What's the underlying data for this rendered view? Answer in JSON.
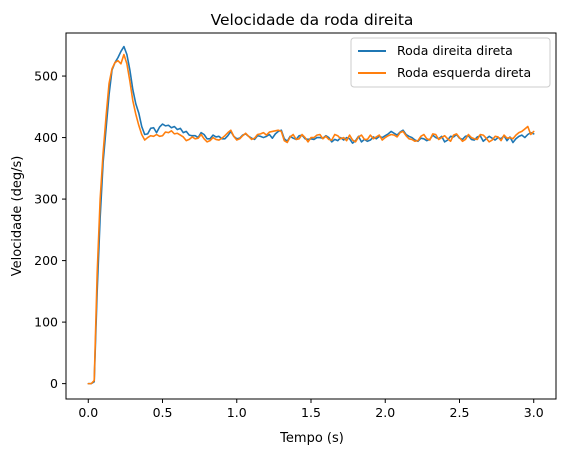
{
  "chart_data": {
    "type": "line",
    "title": "Velocidade da roda direita",
    "xlabel": "Tempo (s)",
    "ylabel": "Velocidade (deg/s)",
    "xlim": [
      -0.15,
      3.15
    ],
    "ylim": [
      -25,
      570
    ],
    "xticks": [
      0.0,
      0.5,
      1.0,
      1.5,
      2.0,
      2.5,
      3.0
    ],
    "xtick_labels": [
      "0.0",
      "0.5",
      "1.0",
      "1.5",
      "2.0",
      "2.5",
      "3.0"
    ],
    "yticks": [
      0,
      100,
      200,
      300,
      400,
      500
    ],
    "ytick_labels": [
      "0",
      "100",
      "200",
      "300",
      "400",
      "500"
    ],
    "grid": false,
    "legend_position": "top-right",
    "series": [
      {
        "name": "Roda direita direta",
        "color": "#1f77b4",
        "x": [
          0.0,
          0.02,
          0.04,
          0.06,
          0.08,
          0.1,
          0.12,
          0.14,
          0.16,
          0.18,
          0.2,
          0.22,
          0.24,
          0.26,
          0.28,
          0.3,
          0.32,
          0.34,
          0.36,
          0.38,
          0.4,
          0.42,
          0.44,
          0.46,
          0.48,
          0.5,
          0.52,
          0.54,
          0.56,
          0.58,
          0.6,
          0.62,
          0.64,
          0.66,
          0.68,
          0.7,
          0.72,
          0.74,
          0.76,
          0.78,
          0.8,
          0.82,
          0.84,
          0.86,
          0.88,
          0.9,
          0.92,
          0.94,
          0.96,
          0.98,
          1.0,
          1.02,
          1.04,
          1.06,
          1.08,
          1.1,
          1.12,
          1.14,
          1.16,
          1.18,
          1.2,
          1.22,
          1.24,
          1.26,
          1.28,
          1.3,
          1.32,
          1.34,
          1.36,
          1.38,
          1.4,
          1.42,
          1.44,
          1.46,
          1.48,
          1.5,
          1.52,
          1.54,
          1.56,
          1.58,
          1.6,
          1.62,
          1.64,
          1.66,
          1.68,
          1.7,
          1.72,
          1.74,
          1.76,
          1.78,
          1.8,
          1.82,
          1.84,
          1.86,
          1.88,
          1.9,
          1.92,
          1.94,
          1.96,
          1.98,
          2.0,
          2.02,
          2.04,
          2.06,
          2.08,
          2.1,
          2.12,
          2.14,
          2.16,
          2.18,
          2.2,
          2.22,
          2.24,
          2.26,
          2.28,
          2.3,
          2.32,
          2.34,
          2.36,
          2.38,
          2.4,
          2.42,
          2.44,
          2.46,
          2.48,
          2.5,
          2.52,
          2.54,
          2.56,
          2.58,
          2.6,
          2.62,
          2.64,
          2.66,
          2.68,
          2.7,
          2.72,
          2.74,
          2.76,
          2.78,
          2.8,
          2.82,
          2.84,
          2.86,
          2.88,
          2.9,
          2.92,
          2.94,
          2.96,
          2.98,
          3.0
        ],
        "y": [
          0,
          0,
          3,
          150,
          270,
          360,
          415,
          470,
          510,
          522,
          530,
          540,
          548,
          535,
          510,
          478,
          455,
          440,
          418,
          405,
          406,
          415,
          416,
          408,
          417,
          422,
          419,
          420,
          416,
          418,
          413,
          415,
          408,
          410,
          404,
          403,
          403,
          400,
          408,
          405,
          398,
          398,
          404,
          401,
          402,
          398,
          398,
          403,
          410,
          402,
          398,
          399,
          404,
          406,
          402,
          399,
          397,
          403,
          402,
          400,
          402,
          405,
          399,
          406,
          410,
          412,
          398,
          394,
          402,
          399,
          397,
          403,
          404,
          398,
          397,
          398,
          397,
          400,
          400,
          399,
          403,
          400,
          393,
          397,
          395,
          400,
          396,
          400,
          398,
          391,
          395,
          402,
          393,
          397,
          394,
          396,
          401,
          398,
          402,
          400,
          403,
          406,
          410,
          407,
          404,
          409,
          412,
          405,
          402,
          400,
          396,
          394,
          399,
          398,
          395,
          397,
          404,
          400,
          398,
          402,
          393,
          396,
          402,
          401,
          405,
          399,
          397,
          402,
          403,
          397,
          396,
          401,
          403,
          394,
          398,
          402,
          399,
          396,
          400,
          398,
          403,
          395,
          401,
          392,
          398,
          402,
          404,
          400,
          405,
          408,
          406
        ]
      },
      {
        "name": "Roda esquerda direta",
        "color": "#ff7f0e",
        "x": [
          0.0,
          0.02,
          0.04,
          0.06,
          0.08,
          0.1,
          0.12,
          0.14,
          0.16,
          0.18,
          0.2,
          0.22,
          0.24,
          0.26,
          0.28,
          0.3,
          0.32,
          0.34,
          0.36,
          0.38,
          0.4,
          0.42,
          0.44,
          0.46,
          0.48,
          0.5,
          0.52,
          0.54,
          0.56,
          0.58,
          0.6,
          0.62,
          0.64,
          0.66,
          0.68,
          0.7,
          0.72,
          0.74,
          0.76,
          0.78,
          0.8,
          0.82,
          0.84,
          0.86,
          0.88,
          0.9,
          0.92,
          0.94,
          0.96,
          0.98,
          1.0,
          1.02,
          1.04,
          1.06,
          1.08,
          1.1,
          1.12,
          1.14,
          1.16,
          1.18,
          1.2,
          1.22,
          1.24,
          1.26,
          1.28,
          1.3,
          1.32,
          1.34,
          1.36,
          1.38,
          1.4,
          1.42,
          1.44,
          1.46,
          1.48,
          1.5,
          1.52,
          1.54,
          1.56,
          1.58,
          1.6,
          1.62,
          1.64,
          1.66,
          1.68,
          1.7,
          1.72,
          1.74,
          1.76,
          1.78,
          1.8,
          1.82,
          1.84,
          1.86,
          1.88,
          1.9,
          1.92,
          1.94,
          1.96,
          1.98,
          2.0,
          2.02,
          2.04,
          2.06,
          2.08,
          2.1,
          2.12,
          2.14,
          2.16,
          2.18,
          2.2,
          2.22,
          2.24,
          2.26,
          2.28,
          2.3,
          2.32,
          2.34,
          2.36,
          2.38,
          2.4,
          2.42,
          2.44,
          2.46,
          2.48,
          2.5,
          2.52,
          2.54,
          2.56,
          2.58,
          2.6,
          2.62,
          2.64,
          2.66,
          2.68,
          2.7,
          2.72,
          2.74,
          2.76,
          2.78,
          2.8,
          2.82,
          2.84,
          2.86,
          2.88,
          2.9,
          2.92,
          2.94,
          2.96,
          2.98,
          3.0
        ],
        "y": [
          0,
          0,
          5,
          180,
          300,
          375,
          435,
          488,
          512,
          522,
          525,
          520,
          535,
          520,
          492,
          460,
          438,
          420,
          405,
          396,
          400,
          403,
          402,
          405,
          402,
          403,
          409,
          408,
          411,
          406,
          407,
          404,
          401,
          395,
          397,
          401,
          398,
          399,
          405,
          398,
          393,
          395,
          400,
          397,
          396,
          399,
          403,
          408,
          412,
          402,
          396,
          398,
          403,
          407,
          402,
          397,
          399,
          405,
          406,
          408,
          404,
          409,
          410,
          411,
          412,
          410,
          395,
          392,
          401,
          405,
          397,
          398,
          405,
          400,
          393,
          400,
          400,
          404,
          405,
          398,
          402,
          397,
          396,
          405,
          403,
          398,
          400,
          395,
          404,
          396,
          393,
          401,
          404,
          397,
          397,
          404,
          398,
          401,
          404,
          396,
          400,
          403,
          405,
          404,
          401,
          408,
          410,
          403,
          398,
          397,
          394,
          395,
          402,
          405,
          398,
          396,
          406,
          405,
          397,
          400,
          403,
          398,
          394,
          404,
          406,
          400,
          394,
          397,
          405,
          400,
          398,
          397,
          405,
          404,
          399,
          393,
          396,
          402,
          401,
          395,
          404,
          399,
          400,
          398,
          404,
          408,
          410,
          414,
          418,
          405,
          410
        ]
      }
    ]
  }
}
